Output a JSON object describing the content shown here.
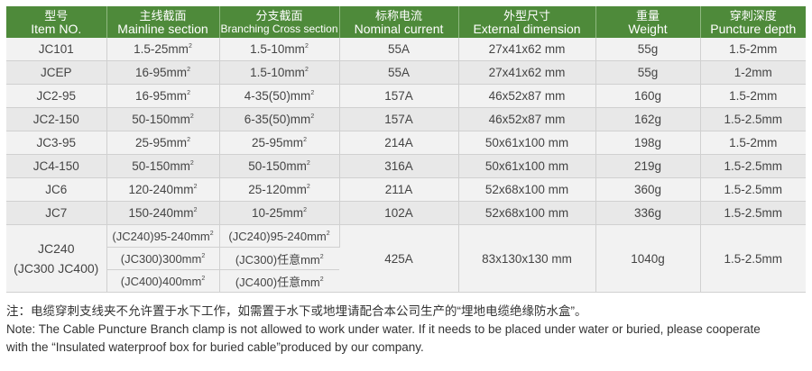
{
  "header": [
    {
      "cn": "型号",
      "en": "Item NO."
    },
    {
      "cn": "主线截面",
      "en": "Mainline section"
    },
    {
      "cn": "分支截面",
      "en": "Branching Cross section"
    },
    {
      "cn": "标称电流",
      "en": "Nominal current"
    },
    {
      "cn": "外型尺寸",
      "en": "External dimension"
    },
    {
      "cn": "重量",
      "en": "Weight"
    },
    {
      "cn": "穿刺深度",
      "en": "Puncture depth"
    }
  ],
  "rows": [
    {
      "item": "JC101",
      "main": "1.5-25mm",
      "branch": "1.5-10mm",
      "current": "55A",
      "dim": "27x41x62 mm",
      "weight": "55g",
      "depth": "1.5-2mm"
    },
    {
      "item": "JCEP",
      "main": "16-95mm",
      "branch": "1.5-10mm",
      "current": "55A",
      "dim": "27x41x62 mm",
      "weight": "55g",
      "depth": "1-2mm"
    },
    {
      "item": "JC2-95",
      "main": "16-95mm",
      "branch": "4-35(50)mm",
      "current": "157A",
      "dim": "46x52x87 mm",
      "weight": "160g",
      "depth": "1.5-2mm"
    },
    {
      "item": "JC2-150",
      "main": "50-150mm",
      "branch": "6-35(50)mm",
      "current": "157A",
      "dim": "46x52x87 mm",
      "weight": "162g",
      "depth": "1.5-2.5mm"
    },
    {
      "item": "JC3-95",
      "main": "25-95mm",
      "branch": "25-95mm",
      "current": "214A",
      "dim": "50x61x100 mm",
      "weight": "198g",
      "depth": "1.5-2mm"
    },
    {
      "item": "JC4-150",
      "main": "50-150mm",
      "branch": "50-150mm",
      "current": "316A",
      "dim": "50x61x100 mm",
      "weight": "219g",
      "depth": "1.5-2.5mm"
    },
    {
      "item": "JC6",
      "main": "120-240mm",
      "branch": "25-120mm",
      "current": "211A",
      "dim": "52x68x100 mm",
      "weight": "360g",
      "depth": "1.5-2.5mm"
    },
    {
      "item": "JC7",
      "main": "150-240mm",
      "branch": "10-25mm",
      "current": "102A",
      "dim": "52x68x100 mm",
      "weight": "336g",
      "depth": "1.5-2.5mm"
    }
  ],
  "group": {
    "item1": "JC240",
    "item2": "(JC300 JC400)",
    "main": [
      "(JC240)95-240mm",
      "(JC300)300mm",
      "(JC400)400mm"
    ],
    "branch": [
      "(JC240)95-240mm",
      "(JC300)任意mm",
      "(JC400)任意mm"
    ],
    "current": "425A",
    "dim": "83x130x130 mm",
    "weight": "1040g",
    "depth": "1.5-2.5mm"
  },
  "sup": "2",
  "notes": {
    "cn": "注：电缆穿刺支线夹不允许置于水下工作，如需置于水下或地埋请配合本公司生产的“埋地电缆绝缘防水盒”。",
    "en1": "Note: The Cable Puncture Branch clamp is not allowed to work under water. If it needs to be placed under water or buried, please cooperate",
    "en2": "with the “Insulated waterproof box for buried cable”produced by our company."
  },
  "colors": {
    "header_bg": "#4e8a3a"
  }
}
